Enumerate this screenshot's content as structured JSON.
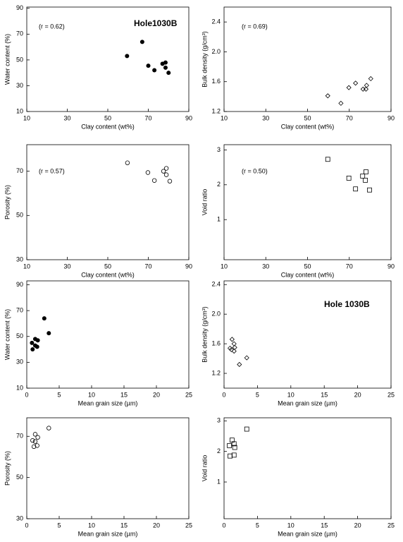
{
  "chart_data": [
    {
      "type": "scatter",
      "marker": "filled-circle",
      "color": "#000000",
      "x_label": "Clay content (wt%)",
      "y_label": "Water content (%)",
      "annotations": [
        "(r = 0.62)",
        "Hole1030B"
      ],
      "x": [
        59.5,
        67,
        70,
        73,
        77,
        78.5,
        78.5,
        80
      ],
      "values": [
        53,
        64,
        45.5,
        42,
        47,
        48,
        44,
        40
      ],
      "xlim": [
        10,
        90
      ],
      "xticks": [
        10,
        30,
        50,
        70,
        90
      ],
      "ylim": [
        10,
        91
      ],
      "yticks": [
        10,
        30,
        50,
        70,
        90
      ]
    },
    {
      "type": "scatter",
      "marker": "diamond",
      "color": "#000000",
      "x_label": "Clay content (wt%)",
      "y_label": "Bulk density (g/cm³)",
      "annotations": [
        "(r = 0.69)"
      ],
      "x": [
        59.7,
        66,
        69.8,
        73,
        76.6,
        78,
        78.3,
        80.3
      ],
      "values": [
        1.41,
        1.31,
        1.52,
        1.58,
        1.5,
        1.5,
        1.55,
        1.64
      ],
      "xlim": [
        10,
        90
      ],
      "xticks": [
        10,
        30,
        50,
        70,
        90
      ],
      "ylim": [
        1.2,
        2.6
      ],
      "yticks": [
        1.2,
        1.6,
        {
          "value": 2,
          "label": "2.0"
        },
        2.4
      ]
    },
    {
      "type": "scatter",
      "marker": "open-circle",
      "color": "#000000",
      "x_label": "Clay content (wt%)",
      "y_label": "Porosity (%)",
      "annotations": [
        "(r = 0.57)"
      ],
      "x": [
        59.7,
        69.8,
        73,
        77.5,
        78.9,
        78.9,
        80.6
      ],
      "values": [
        73.8,
        69.4,
        65.8,
        70,
        71.3,
        68.4,
        65.5
      ],
      "xlim": [
        10,
        90
      ],
      "xticks": [
        10,
        30,
        50,
        70,
        90
      ],
      "ylim": [
        30,
        82
      ],
      "yticks": [
        30,
        50,
        70
      ]
    },
    {
      "type": "scatter",
      "marker": "square",
      "color": "#000000",
      "x_label": "Clay content (wt%)",
      "y_label": "Void ratio",
      "annotations": [
        "(r = 0.50)"
      ],
      "x": [
        59.7,
        69.8,
        73,
        76.4,
        78,
        77.7,
        79.7
      ],
      "values": [
        2.73,
        2.19,
        1.88,
        2.25,
        2.37,
        2.13,
        1.85
      ],
      "xlim": [
        10,
        90
      ],
      "xticks": [
        10,
        30,
        50,
        70,
        90
      ],
      "ylim": [
        -0.15,
        3.15
      ],
      "yticks": [
        1,
        2,
        3
      ]
    },
    {
      "type": "scatter",
      "marker": "filled-circle",
      "color": "#000000",
      "x_label": "Mean grain size (µm)",
      "y_label": "Water content (%)",
      "annotations": [],
      "x": [
        2.7,
        3.4,
        1.3,
        1.7,
        0.8,
        1.3,
        1.6,
        0.9
      ],
      "values": [
        64,
        52.5,
        48,
        47,
        45,
        43,
        42,
        40
      ],
      "xlim": [
        0,
        25
      ],
      "xticks": [
        0,
        5,
        10,
        15,
        20,
        25
      ],
      "ylim": [
        10,
        93
      ],
      "yticks": [
        10,
        30,
        50,
        70,
        90
      ]
    },
    {
      "type": "scatter",
      "marker": "diamond",
      "color": "#000000",
      "x_label": "Mean grain size (µm)",
      "y_label": "Bulk density (g/cm³)",
      "annotations": [
        "Hole 1030B"
      ],
      "x": [
        1.2,
        1.5,
        0.9,
        1.1,
        1.5,
        1.6,
        2.3,
        3.4
      ],
      "values": [
        1.66,
        1.6,
        1.54,
        1.52,
        1.5,
        1.55,
        1.32,
        1.41
      ],
      "xlim": [
        0,
        25
      ],
      "xticks": [
        0,
        5,
        10,
        15,
        20,
        25
      ],
      "ylim": [
        1.0,
        2.45
      ],
      "yticks": [
        1.2,
        1.6,
        {
          "value": 2,
          "label": "2.0"
        },
        2.4
      ]
    },
    {
      "type": "scatter",
      "marker": "open-circle",
      "color": "#000000",
      "x_label": "Mean grain size (µm)",
      "y_label": "Porosity (%)",
      "annotations": [],
      "x": [
        3.4,
        1.3,
        1.7,
        0.9,
        1.3,
        1.1,
        1.6
      ],
      "values": [
        74,
        71,
        69.5,
        68,
        67.5,
        65,
        65.5
      ],
      "xlim": [
        0,
        25
      ],
      "xticks": [
        0,
        5,
        10,
        15,
        20,
        25
      ],
      "ylim": [
        30,
        79
      ],
      "yticks": [
        30,
        50,
        70
      ]
    },
    {
      "type": "scatter",
      "marker": "square",
      "color": "#000000",
      "x_label": "Mean grain size (µm)",
      "y_label": "Void ratio",
      "annotations": [],
      "x": [
        3.4,
        1.2,
        1.5,
        0.8,
        1.6,
        0.9,
        1.5
      ],
      "values": [
        2.73,
        2.37,
        2.25,
        2.19,
        2.13,
        1.85,
        1.88
      ],
      "xlim": [
        0,
        25
      ],
      "xticks": [
        0,
        5,
        10,
        15,
        20,
        25
      ],
      "ylim": [
        -0.2,
        3.1
      ],
      "yticks": [
        1,
        2,
        3
      ]
    }
  ]
}
